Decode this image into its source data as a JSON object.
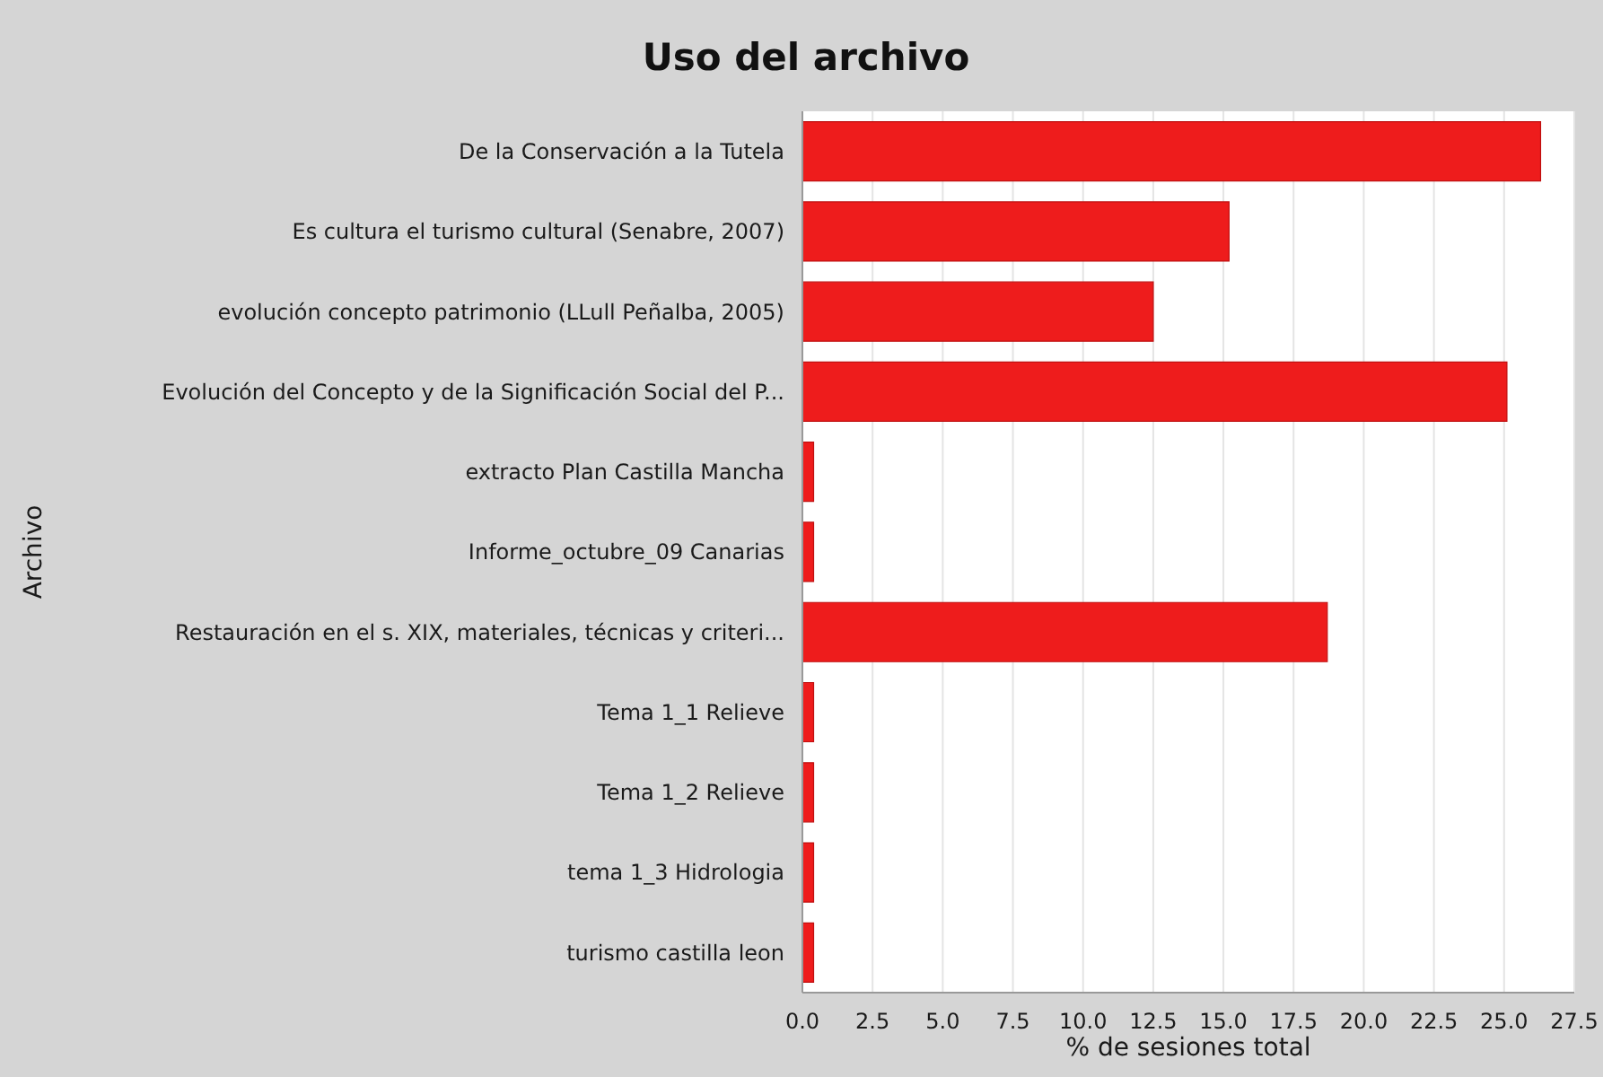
{
  "chart_data": {
    "type": "bar",
    "orientation": "horizontal",
    "title": "Uso del archivo",
    "xlabel": "% de sesiones total",
    "ylabel": "Archivo",
    "categories": [
      "De la Conservación a la Tutela",
      "Es cultura el turismo cultural (Senabre, 2007)",
      "evolución concepto patrimonio (LLull Peñalba, 2005)",
      "Evolución del Concepto y de la Significación Social del P...",
      "extracto Plan Castilla Mancha",
      "Informe_octubre_09 Canarias",
      "Restauración en el s. XIX, materiales, técnicas y criteri...",
      "Tema 1_1 Relieve",
      "Tema 1_2 Relieve",
      "tema 1_3 Hidrologia",
      "turismo castilla leon"
    ],
    "values": [
      26.3,
      15.2,
      12.5,
      25.1,
      0.4,
      0.4,
      18.7,
      0.4,
      0.4,
      0.4,
      0.4
    ],
    "color": "#ee1c1c",
    "xlim": [
      0,
      27.5
    ],
    "xticks": [
      {
        "value": 0,
        "label": "0.0"
      },
      2.5,
      {
        "value": 5,
        "label": "5.0"
      },
      7.5,
      {
        "value": 10,
        "label": "10.0"
      },
      12.5,
      {
        "value": 15,
        "label": "15.0"
      },
      17.5,
      {
        "value": 20,
        "label": "20.0"
      },
      22.5,
      {
        "value": 25,
        "label": "25.0"
      },
      27.5
    ],
    "grid": "x"
  }
}
